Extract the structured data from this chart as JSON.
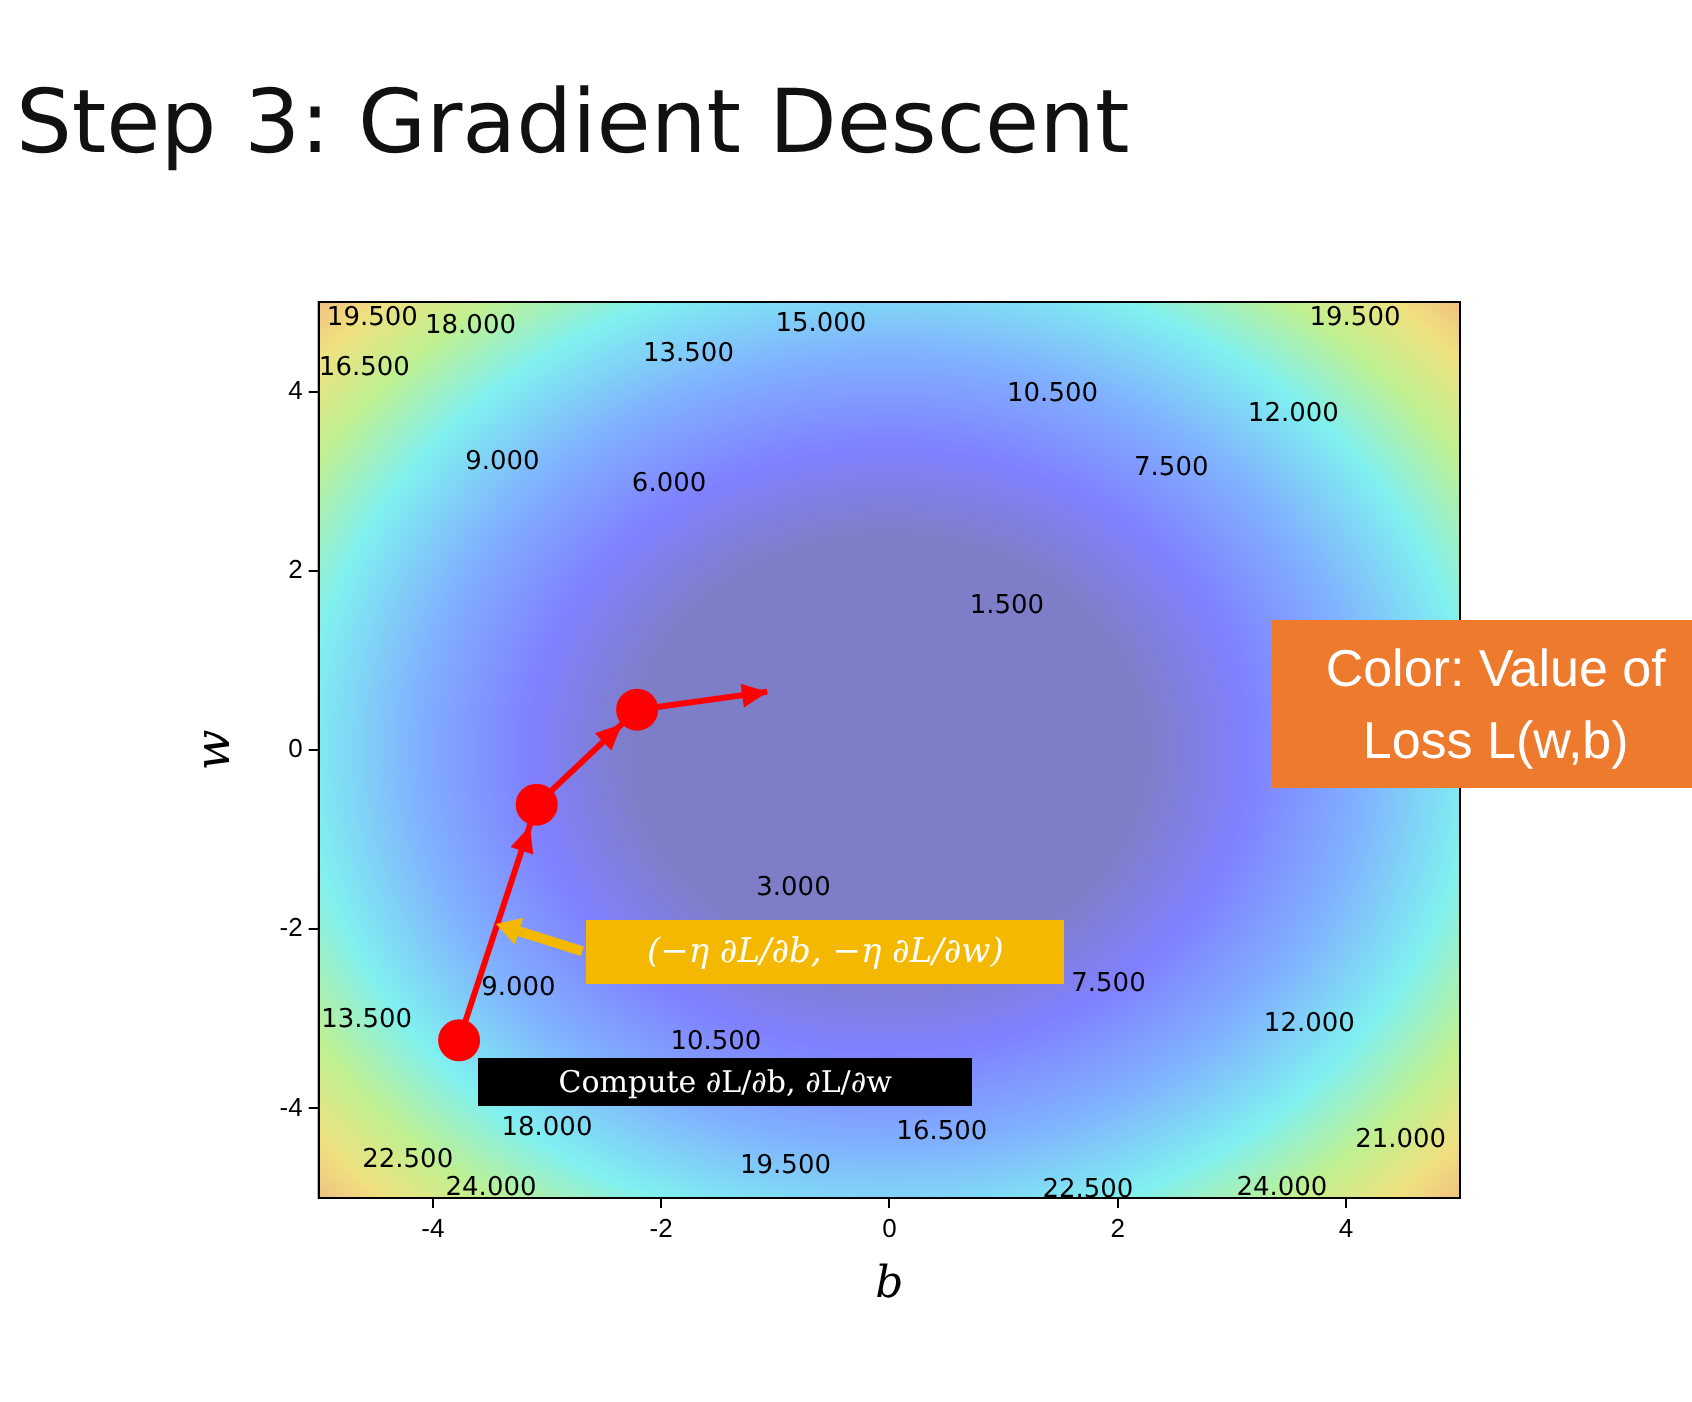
{
  "chart_data": {
    "type": "scatter",
    "title": "Step 3: Gradient Descent",
    "xlabel": "b",
    "ylabel": "w",
    "xlim": [
      -5,
      5
    ],
    "ylim": [
      -5,
      5
    ],
    "xticks": [
      -4,
      -2,
      0,
      2,
      4
    ],
    "yticks": [
      -4,
      -2,
      0,
      2,
      4
    ],
    "grid": false,
    "legend": false,
    "series": [
      {
        "type": "line",
        "marker": "none",
        "color": "#ff0000",
        "x": [
          -3.77,
          -3.09,
          -2.21,
          -1.07
        ],
        "values": [
          -3.24,
          -0.61,
          0.45,
          0.65
        ]
      },
      {
        "type": "scatter",
        "marker": "circle",
        "color": "#ff0000",
        "x": [
          -3.77,
          -3.09,
          -2.21
        ],
        "values": [
          -3.24,
          -0.61,
          0.45
        ]
      }
    ],
    "annotations": [
      "19.500",
      "18.000",
      "16.500",
      "15.000",
      "13.500",
      "10.500",
      "12.000",
      "19.500",
      "9.000",
      "6.000",
      "7.500",
      "1.500",
      "3.000",
      "7.500",
      "9.000",
      "13.500",
      "10.500",
      "12.000",
      "18.000",
      "16.500",
      "19.500",
      "22.500",
      "24.000",
      "22.500",
      "24.000",
      "21.000",
      "(−η ∂L/∂b, −η ∂L/∂w)",
      "Compute ∂L/∂b, ∂L/∂w",
      "Color: Value of Loss L(w,b)"
    ]
  }
}
